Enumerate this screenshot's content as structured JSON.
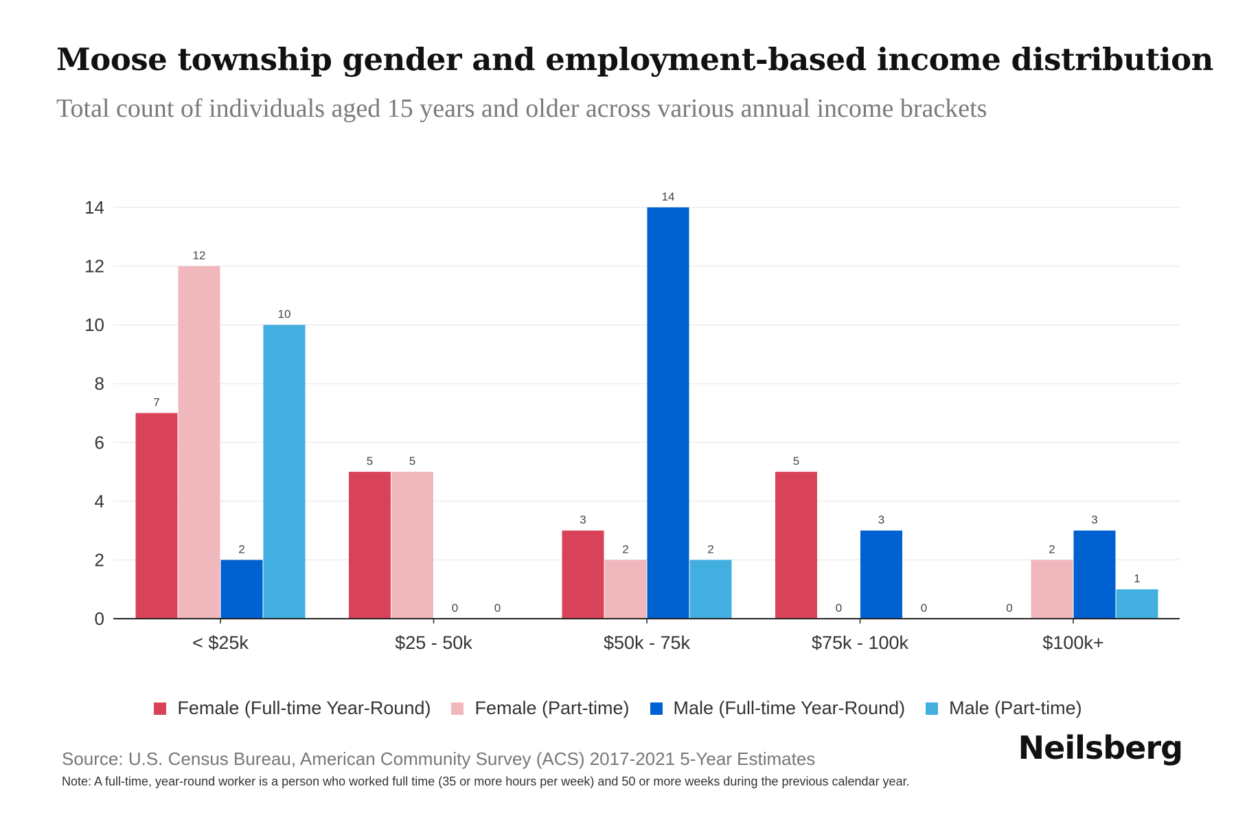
{
  "header": {
    "title": "Moose township gender and employment-based income distribution",
    "subtitle": "Total count of individuals aged 15 years and older across various annual income brackets"
  },
  "chart_data": {
    "type": "bar",
    "title": "Moose township gender and employment-based income distribution",
    "subtitle": "Total count of individuals aged 15 years and older across various annual income brackets",
    "xlabel": "",
    "ylabel": "",
    "categories": [
      "< $25k",
      "$25 - 50k",
      "$50k - 75k",
      "$75k - 100k",
      "$100k+"
    ],
    "ylim": [
      0,
      14
    ],
    "yticks": [
      0,
      2,
      4,
      6,
      8,
      10,
      12,
      14
    ],
    "grid": true,
    "legend_position": "bottom",
    "series": [
      {
        "name": "Female (Full-time Year-Round)",
        "color": "#d9435a",
        "values": [
          7,
          5,
          3,
          5,
          0
        ]
      },
      {
        "name": "Female (Part-time)",
        "color": "#f0b8bc",
        "values": [
          12,
          5,
          2,
          0,
          2
        ]
      },
      {
        "name": "Male (Full-time Year-Round)",
        "color": "#0061d0",
        "values": [
          2,
          0,
          14,
          3,
          3
        ]
      },
      {
        "name": "Male (Part-time)",
        "color": "#42afe0",
        "values": [
          10,
          0,
          2,
          0,
          1
        ]
      }
    ]
  },
  "footer": {
    "source": "Source: U.S. Census Bureau, American Community Survey (ACS) 2017-2021 5-Year Estimates",
    "note": "Note: A full-time, year-round worker is a person who worked full time (35 or more hours per week) and 50 or more weeks during the previous calendar year.",
    "brand": "Neilsberg"
  }
}
